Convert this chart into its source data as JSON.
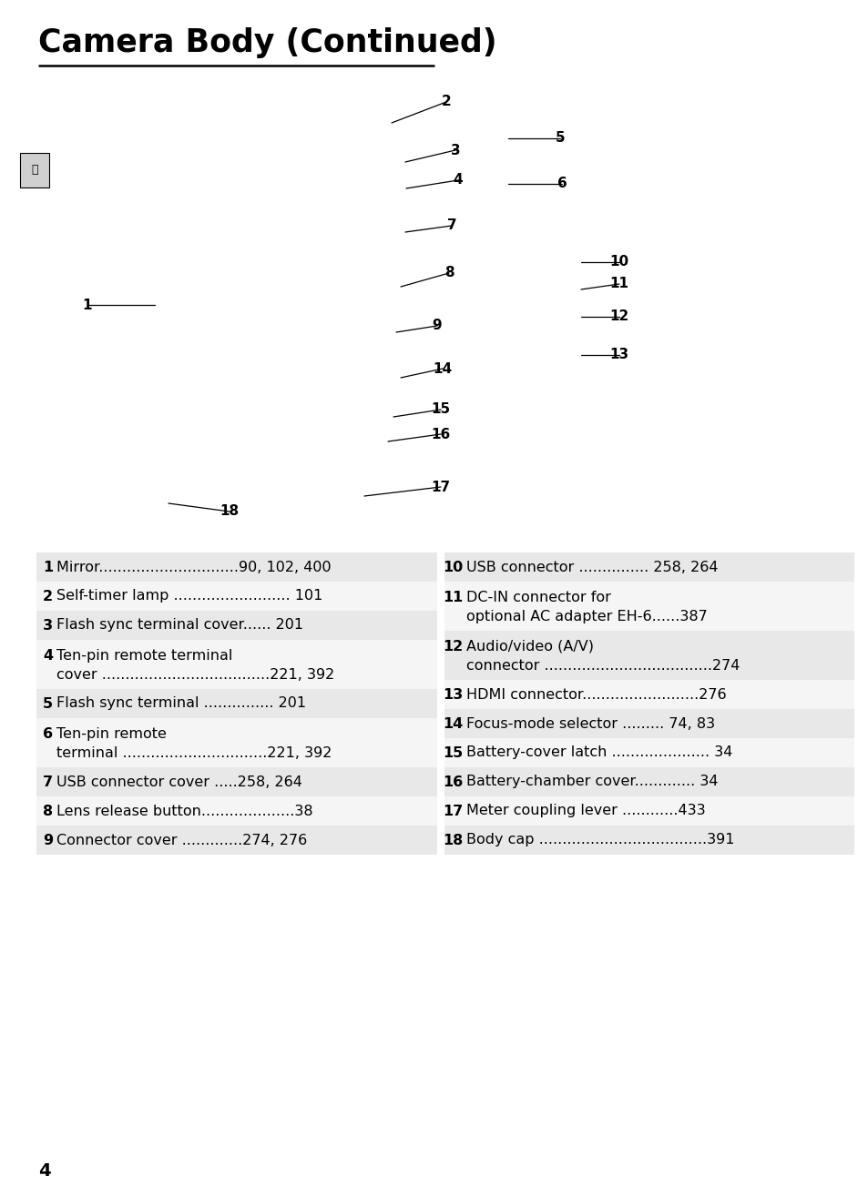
{
  "title": "Camera Body (Continued)",
  "background_color": "#ffffff",
  "page_number": "4",
  "left_items": [
    {
      "num": "1",
      "lines": [
        "Mirror..............................90, 102, 400"
      ],
      "multiline": false
    },
    {
      "num": "2",
      "lines": [
        "Self-timer lamp ......................... 101"
      ],
      "multiline": false
    },
    {
      "num": "3",
      "lines": [
        "Flash sync terminal cover...... 201"
      ],
      "multiline": false
    },
    {
      "num": "4",
      "lines": [
        "Ten-pin remote terminal",
        "cover ....................................221, 392"
      ],
      "multiline": true
    },
    {
      "num": "5",
      "lines": [
        "Flash sync terminal ............... 201"
      ],
      "multiline": false
    },
    {
      "num": "6",
      "lines": [
        "Ten-pin remote",
        "terminal ...............................221, 392"
      ],
      "multiline": true
    },
    {
      "num": "7",
      "lines": [
        "USB connector cover .....258, 264"
      ],
      "multiline": false
    },
    {
      "num": "8",
      "lines": [
        "Lens release button....................38"
      ],
      "multiline": false
    },
    {
      "num": "9",
      "lines": [
        "Connector cover .............274, 276"
      ],
      "multiline": false
    }
  ],
  "right_items": [
    {
      "num": "10",
      "lines": [
        "USB connector ............... 258, 264"
      ],
      "multiline": false
    },
    {
      "num": "11",
      "lines": [
        "DC-IN connector for",
        "optional AC adapter EH-6......387"
      ],
      "multiline": true
    },
    {
      "num": "12",
      "lines": [
        "Audio/video (A/V)",
        "connector ....................................274"
      ],
      "multiline": true
    },
    {
      "num": "13",
      "lines": [
        "HDMI connector.........................276"
      ],
      "multiline": false
    },
    {
      "num": "14",
      "lines": [
        "Focus-mode selector ......... 74, 83"
      ],
      "multiline": false
    },
    {
      "num": "15",
      "lines": [
        "Battery-cover latch ..................... 34"
      ],
      "multiline": false
    },
    {
      "num": "16",
      "lines": [
        "Battery-chamber cover............. 34"
      ],
      "multiline": false
    },
    {
      "num": "17",
      "lines": [
        "Meter coupling lever ............433"
      ],
      "multiline": false
    },
    {
      "num": "18",
      "lines": [
        "Body cap ....................................391"
      ],
      "multiline": false
    }
  ],
  "row_heights_left": [
    32,
    32,
    32,
    54,
    32,
    54,
    32,
    32,
    32
  ],
  "row_heights_right": [
    32,
    54,
    54,
    32,
    32,
    32,
    32,
    32,
    32
  ]
}
